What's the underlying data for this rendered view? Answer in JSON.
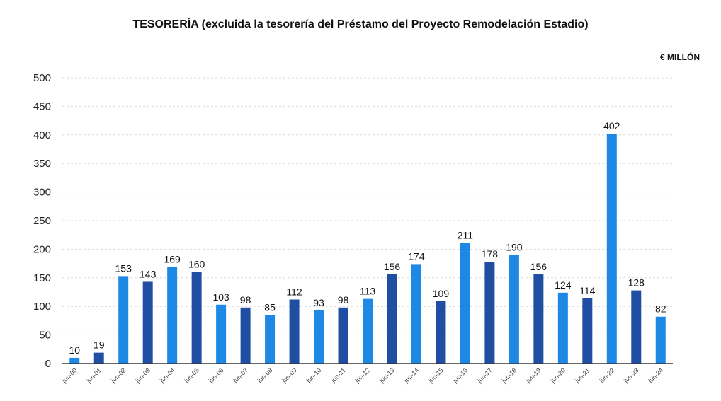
{
  "title": "TESORERÍA (excluida la tesorería del Préstamo del Proyecto Remodelación Estadio)",
  "unit": "€ MILLÓN",
  "chart_data": {
    "type": "bar",
    "title": "TESORERÍA (excluida la tesorería del Préstamo del Proyecto Remodelación Estadio)",
    "ylabel": "€ MILLÓN",
    "xlabel": "",
    "ylim": [
      0,
      500
    ],
    "yticks": [
      0,
      50,
      100,
      150,
      200,
      250,
      300,
      350,
      400,
      450,
      500
    ],
    "grid": true,
    "legend": "none",
    "categories": [
      "jun-00",
      "jun-01",
      "jun-02",
      "jun-03",
      "jun-04",
      "jun-05",
      "jun-06",
      "jun-07",
      "jun-08",
      "jun-09",
      "jun-10",
      "jun-11",
      "jun-12",
      "jun-13",
      "jun-14",
      "jun-15",
      "jun-16",
      "jun-17",
      "jun-18",
      "jun-19",
      "jun-20",
      "jun-21",
      "jun-22",
      "jun-23",
      "jun-24"
    ],
    "values": [
      10,
      19,
      153,
      143,
      169,
      160,
      103,
      98,
      85,
      112,
      93,
      98,
      113,
      156,
      174,
      109,
      211,
      178,
      190,
      156,
      124,
      114,
      402,
      128,
      82
    ],
    "data_labels": [
      "10",
      "19",
      "153",
      "143",
      "169",
      "160",
      "103",
      "98",
      "85",
      "112",
      "93",
      "98",
      "113",
      "156",
      "174",
      "109",
      "211",
      "178",
      "190",
      "156",
      "124",
      "114",
      "402",
      "128",
      "82"
    ],
    "colors": [
      "#1e88e5",
      "#1f4ea3",
      "#1e88e5",
      "#1f4ea3",
      "#1e88e5",
      "#1f4ea3",
      "#1e88e5",
      "#1f4ea3",
      "#1e88e5",
      "#1f4ea3",
      "#1e88e5",
      "#1f4ea3",
      "#1e88e5",
      "#1f4ea3",
      "#1e88e5",
      "#1f4ea3",
      "#1e88e5",
      "#1f4ea3",
      "#1e88e5",
      "#1f4ea3",
      "#1e88e5",
      "#1f4ea3",
      "#1e88e5",
      "#1f4ea3",
      "#1e88e5"
    ]
  }
}
